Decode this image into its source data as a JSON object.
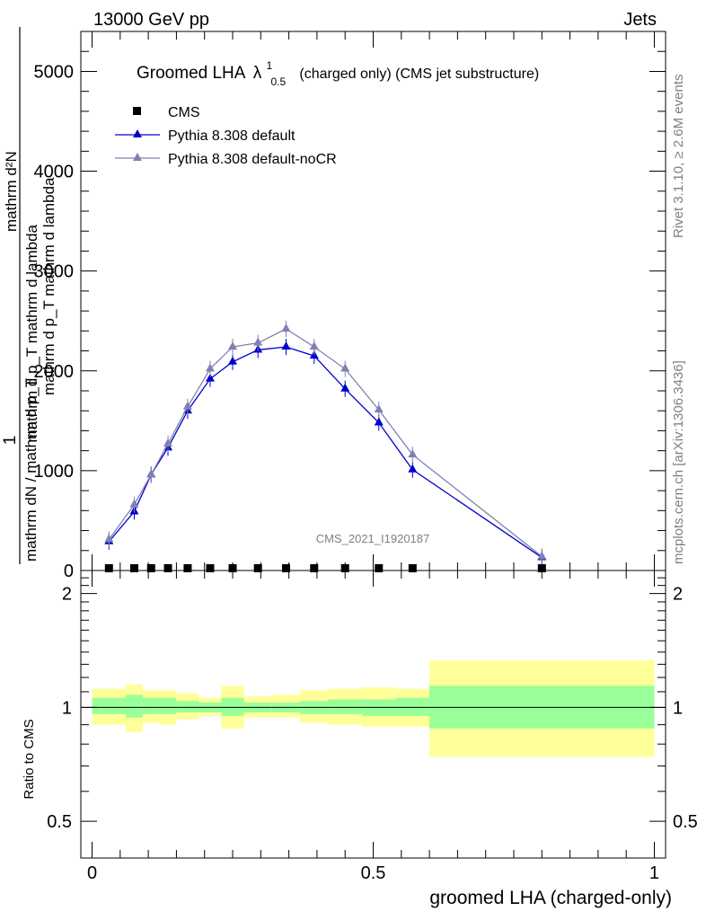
{
  "header": {
    "left": "13000 GeV pp",
    "right": "Jets"
  },
  "side": {
    "rivet": "Rivet 3.1.10, ≥ 2.6M events",
    "mcplots": "mcplots.cern.ch [arXiv:1306.3436]"
  },
  "chart_data": [
    {
      "type": "line",
      "title": {
        "main": "Groomed LHA",
        "lambda": "λ",
        "sup": "1",
        "sub": "0.5",
        "rest": "(charged only) (CMS jet substructure)"
      },
      "watermark": "CMS_2021_I1920187",
      "ylabel": {
        "frac_num": "1",
        "frac_den": "mathrm dN / mathrm d p_T",
        "line1": "mathrm d²N",
        "line2": "mathrm d p_T mathrm d lambda",
        "overlay": "mathrm d p_T mathrm d lambda"
      },
      "ylim": [
        0,
        5400
      ],
      "yticks": [
        {
          "v": 0,
          "label": "0"
        },
        {
          "v": 1000,
          "label": "1000"
        },
        {
          "v": 2000,
          "label": "2000"
        },
        {
          "v": 3000,
          "label": "3000"
        },
        {
          "v": 4000,
          "label": "4000"
        },
        {
          "v": 5000,
          "label": "5000"
        }
      ],
      "legend": {
        "placement": "top-left",
        "entries": [
          "CMS",
          "Pythia 8.308 default",
          "Pythia 8.308 default-noCR"
        ]
      },
      "x": [
        0.03,
        0.075,
        0.105,
        0.135,
        0.17,
        0.21,
        0.25,
        0.295,
        0.345,
        0.395,
        0.45,
        0.51,
        0.57,
        0.8
      ],
      "series": [
        {
          "name": "CMS",
          "color": "#000000",
          "marker": "square",
          "values": [
            5,
            5,
            5,
            5,
            5,
            5,
            5,
            5,
            5,
            5,
            5,
            5,
            5,
            5
          ]
        },
        {
          "name": "Pythia 8.308 default",
          "color": "#0000cc",
          "marker": "triangle",
          "values": [
            290,
            590,
            960,
            1230,
            1600,
            1920,
            2090,
            2210,
            2240,
            2150,
            1820,
            1480,
            1010,
            130
          ]
        },
        {
          "name": "Pythia 8.308 default-noCR",
          "color": "#8080b3",
          "marker": "triangle",
          "values": [
            310,
            660,
            960,
            1270,
            1640,
            2020,
            2240,
            2280,
            2420,
            2240,
            2020,
            1610,
            1160,
            140
          ]
        }
      ]
    },
    {
      "type": "area",
      "ylabel": "Ratio to CMS",
      "xlabel": "groomed LHA (charged-only)",
      "ylim": [
        0.4,
        2.3
      ],
      "yscale": "log",
      "yticks": [
        {
          "v": 0.5,
          "label": "0.5"
        },
        {
          "v": 1,
          "label": "1"
        },
        {
          "v": 2,
          "label": "2"
        }
      ],
      "xlim": [
        -0.02,
        1.02
      ],
      "xticks": [
        {
          "v": 0,
          "label": "0"
        },
        {
          "v": 0.5,
          "label": "0.5"
        },
        {
          "v": 1,
          "label": "1"
        }
      ],
      "reference": 1,
      "bands": [
        {
          "x0": 0.0,
          "x1": 0.06,
          "in": [
            0.96,
            1.06
          ],
          "out": [
            0.9,
            1.12
          ]
        },
        {
          "x0": 0.06,
          "x1": 0.09,
          "in": [
            0.94,
            1.08
          ],
          "out": [
            0.86,
            1.15
          ]
        },
        {
          "x0": 0.09,
          "x1": 0.12,
          "in": [
            0.96,
            1.06
          ],
          "out": [
            0.91,
            1.11
          ]
        },
        {
          "x0": 0.12,
          "x1": 0.15,
          "in": [
            0.96,
            1.06
          ],
          "out": [
            0.9,
            1.11
          ]
        },
        {
          "x0": 0.15,
          "x1": 0.19,
          "in": [
            0.97,
            1.04
          ],
          "out": [
            0.93,
            1.09
          ]
        },
        {
          "x0": 0.19,
          "x1": 0.23,
          "in": [
            0.97,
            1.03
          ],
          "out": [
            0.95,
            1.06
          ]
        },
        {
          "x0": 0.23,
          "x1": 0.27,
          "in": [
            0.95,
            1.06
          ],
          "out": [
            0.88,
            1.14
          ]
        },
        {
          "x0": 0.27,
          "x1": 0.32,
          "in": [
            0.97,
            1.03
          ],
          "out": [
            0.94,
            1.07
          ]
        },
        {
          "x0": 0.32,
          "x1": 0.37,
          "in": [
            0.97,
            1.03
          ],
          "out": [
            0.94,
            1.08
          ]
        },
        {
          "x0": 0.37,
          "x1": 0.42,
          "in": [
            0.96,
            1.04
          ],
          "out": [
            0.91,
            1.11
          ]
        },
        {
          "x0": 0.42,
          "x1": 0.48,
          "in": [
            0.96,
            1.05
          ],
          "out": [
            0.9,
            1.12
          ]
        },
        {
          "x0": 0.48,
          "x1": 0.54,
          "in": [
            0.95,
            1.05
          ],
          "out": [
            0.89,
            1.13
          ]
        },
        {
          "x0": 0.54,
          "x1": 0.6,
          "in": [
            0.95,
            1.06
          ],
          "out": [
            0.89,
            1.12
          ]
        },
        {
          "x0": 0.6,
          "x1": 1.0,
          "in": [
            0.88,
            1.14
          ],
          "out": [
            0.74,
            1.33
          ]
        }
      ],
      "colors": {
        "inner": "#99ff99",
        "outer": "#ffff99"
      }
    }
  ]
}
